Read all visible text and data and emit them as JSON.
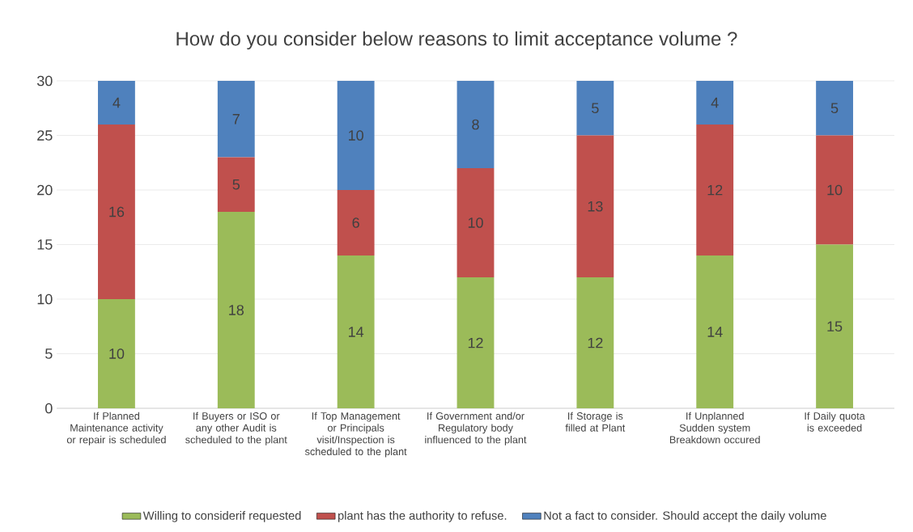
{
  "chart_data": {
    "type": "bar",
    "stacked": true,
    "title": "How do you consider below reasons to limit  acceptance volume ?",
    "categories": [
      "If Planned Maintenance activity or repair is scheduled",
      "If Buyers or ISO or any other Audit is scheduled to the plant",
      "If Top Management or Principals visit/Inspection is scheduled to the plant",
      "If Government and/or Regulatory body influenced to the plant",
      "If Storage is filled at Plant",
      "If Unplanned Sudden system Breakdown occured",
      "If Daily quota is exceeded"
    ],
    "series": [
      {
        "name": "Willing to considerif requested",
        "color": "#9bbb59",
        "values": [
          10,
          18,
          14,
          12,
          12,
          14,
          15
        ]
      },
      {
        "name": "plant has the authority to refuse.",
        "color": "#c0504d",
        "values": [
          16,
          5,
          6,
          10,
          13,
          12,
          10
        ]
      },
      {
        "name": "Not a fact to consider. Should accept the daily volume",
        "color": "#4f81bd",
        "values": [
          4,
          7,
          10,
          8,
          5,
          4,
          5
        ]
      }
    ],
    "ylim": [
      0,
      30
    ],
    "yticks": [
      0,
      5,
      10,
      15,
      20,
      25,
      30
    ],
    "grid": "y",
    "data_labels": true,
    "legend": "bottom"
  }
}
